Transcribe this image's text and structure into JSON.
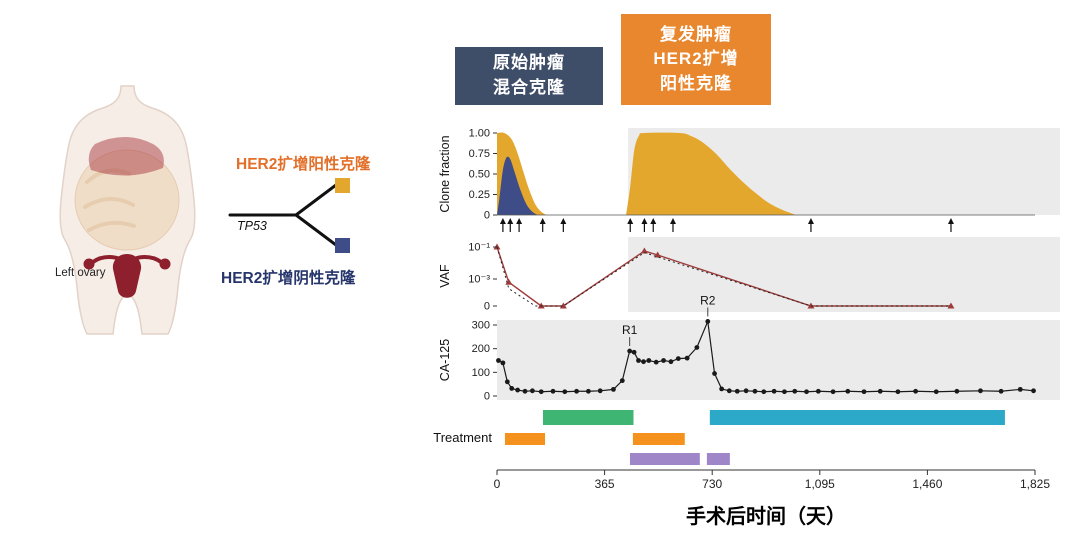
{
  "colors": {
    "yellow": "#E3A72E",
    "navy": "#3E4C87",
    "header_navy_bg": "#3F4E68",
    "header_orange_bg": "#E8872E",
    "tree_positive_text": "#E2702A",
    "tree_negative_text": "#26356B",
    "green": "#3FB573",
    "teal": "#2CA8C9",
    "orange": "#F5921E",
    "purple": "#9F86C9",
    "vaf_solid": "#9E3B3B",
    "vaf_dotted": "#222222",
    "ca125": "#1A1A1A",
    "panel_gray": "#EBEBEB",
    "arrow": "#111111",
    "axis": "#333333"
  },
  "anatomy": {
    "label": "Left ovary"
  },
  "tree": {
    "gene": "TP53",
    "positive": "HER2扩增阳性克隆",
    "negative": "HER2扩增阴性克隆"
  },
  "headers": {
    "primary": [
      "原始肿瘤",
      "混合克隆"
    ],
    "recurrent": [
      "复发肿瘤",
      "HER2扩增",
      "阳性克隆"
    ]
  },
  "chart_data": {
    "type": "multi-panel timeline (area + line + scatter + bars)",
    "x": {
      "title": "手术后时间（天）",
      "ticks": [
        0,
        365,
        730,
        1095,
        1460,
        1825
      ],
      "tick_labels": [
        "0",
        "365",
        "730",
        "1,095",
        "1,460",
        "1,825"
      ],
      "domain": [
        0,
        1910
      ],
      "recurrence_shade_start_day": 445
    },
    "clone_fraction": {
      "ylabel": "Clone fraction",
      "type": "area",
      "ylim": [
        0,
        1
      ],
      "yticks": [
        {
          "v": 1.0,
          "label": "1.00"
        },
        {
          "v": 0.75,
          "label": "0.75"
        },
        {
          "v": 0.5,
          "label": "0.50"
        },
        {
          "v": 0.25,
          "label": "0.25"
        },
        {
          "v": 0,
          "label": "0"
        }
      ],
      "areas": [
        {
          "clone": "primary HER2-positive",
          "color": "yellow",
          "points": [
            [
              0,
              1
            ],
            [
              25,
              1
            ],
            [
              50,
              0.92
            ],
            [
              70,
              0.75
            ],
            [
              90,
              0.52
            ],
            [
              110,
              0.3
            ],
            [
              130,
              0.13
            ],
            [
              150,
              0.04
            ],
            [
              168,
              0
            ]
          ]
        },
        {
          "clone": "primary HER2-negative",
          "color": "navy",
          "points": [
            [
              0,
              0
            ],
            [
              8,
              0.2
            ],
            [
              20,
              0.55
            ],
            [
              32,
              0.7
            ],
            [
              45,
              0.68
            ],
            [
              60,
              0.52
            ],
            [
              80,
              0.3
            ],
            [
              100,
              0.13
            ],
            [
              120,
              0.04
            ],
            [
              138,
              0
            ]
          ]
        },
        {
          "clone": "recurrent HER2-positive",
          "color": "yellow",
          "points": [
            [
              438,
              0
            ],
            [
              452,
              0.35
            ],
            [
              466,
              0.8
            ],
            [
              482,
              0.97
            ],
            [
              500,
              1
            ],
            [
              620,
              1
            ],
            [
              660,
              0.96
            ],
            [
              700,
              0.88
            ],
            [
              745,
              0.74
            ],
            [
              790,
              0.56
            ],
            [
              835,
              0.4
            ],
            [
              880,
              0.26
            ],
            [
              925,
              0.14
            ],
            [
              970,
              0.06
            ],
            [
              1015,
              0
            ]
          ]
        }
      ],
      "sample_arrow_days": [
        20,
        45,
        75,
        155,
        225,
        452,
        500,
        530,
        597,
        1065,
        1540
      ]
    },
    "vaf": {
      "ylabel": "VAF",
      "type": "line-log",
      "yticks": [
        {
          "v": -1,
          "label": "10⁻¹"
        },
        {
          "v": -3,
          "label": "10⁻³"
        },
        {
          "v": "nd",
          "label": "0"
        }
      ],
      "series": [
        {
          "style": "solid",
          "points": [
            [
              0,
              -1
            ],
            [
              40,
              -3.2
            ],
            [
              150,
              "nd"
            ],
            [
              225,
              "nd"
            ],
            [
              500,
              -1.25
            ],
            [
              545,
              -1.5
            ],
            [
              1065,
              "nd"
            ],
            [
              1540,
              "nd"
            ]
          ]
        },
        {
          "style": "dotted",
          "points": [
            [
              0,
              -1
            ],
            [
              40,
              -3.6
            ],
            [
              130,
              "nd"
            ],
            [
              225,
              "nd"
            ],
            [
              500,
              -1.35
            ],
            [
              545,
              -1.62
            ],
            [
              1065,
              "nd"
            ],
            [
              1540,
              "nd"
            ]
          ]
        }
      ]
    },
    "ca125": {
      "ylabel": "CA-125",
      "type": "line+scatter",
      "ylim": [
        0,
        300
      ],
      "yticks": [
        {
          "v": 300,
          "label": "300"
        },
        {
          "v": 200,
          "label": "200"
        },
        {
          "v": 100,
          "label": "100"
        },
        {
          "v": 0,
          "label": "0"
        }
      ],
      "points": [
        [
          5,
          150
        ],
        [
          20,
          140
        ],
        [
          35,
          60
        ],
        [
          50,
          32
        ],
        [
          70,
          25
        ],
        [
          95,
          20
        ],
        [
          120,
          22
        ],
        [
          150,
          18
        ],
        [
          190,
          20
        ],
        [
          230,
          18
        ],
        [
          270,
          20
        ],
        [
          310,
          20
        ],
        [
          350,
          22
        ],
        [
          395,
          28
        ],
        [
          425,
          65
        ],
        [
          450,
          190
        ],
        [
          465,
          185
        ],
        [
          480,
          150
        ],
        [
          497,
          145
        ],
        [
          515,
          150
        ],
        [
          540,
          143
        ],
        [
          565,
          150
        ],
        [
          590,
          145
        ],
        [
          615,
          158
        ],
        [
          645,
          160
        ],
        [
          678,
          205
        ],
        [
          715,
          315
        ],
        [
          738,
          95
        ],
        [
          762,
          30
        ],
        [
          788,
          22
        ],
        [
          815,
          20
        ],
        [
          845,
          22
        ],
        [
          875,
          20
        ],
        [
          905,
          18
        ],
        [
          940,
          20
        ],
        [
          975,
          18
        ],
        [
          1010,
          20
        ],
        [
          1050,
          18
        ],
        [
          1090,
          20
        ],
        [
          1140,
          18
        ],
        [
          1190,
          20
        ],
        [
          1245,
          18
        ],
        [
          1300,
          20
        ],
        [
          1360,
          18
        ],
        [
          1420,
          20
        ],
        [
          1490,
          18
        ],
        [
          1560,
          20
        ],
        [
          1640,
          22
        ],
        [
          1710,
          20
        ],
        [
          1775,
          28
        ],
        [
          1820,
          22
        ]
      ],
      "annotations": [
        {
          "label": "R1",
          "day": 450,
          "value": 190
        },
        {
          "label": "R2",
          "day": 715,
          "value": 315
        }
      ]
    },
    "treatment": {
      "label": "Treatment",
      "type": "bars",
      "bars": [
        {
          "row": "top",
          "color": "green",
          "start": 156,
          "end": 463
        },
        {
          "row": "mid",
          "color": "orange",
          "start": 27,
          "end": 163
        },
        {
          "row": "mid",
          "color": "orange",
          "start": 461,
          "end": 637
        },
        {
          "row": "top",
          "color": "teal",
          "start": 722,
          "end": 1723
        },
        {
          "row": "bot",
          "color": "purple",
          "start": 451,
          "end": 688
        },
        {
          "row": "bot",
          "color": "purple",
          "start": 712,
          "end": 790
        }
      ]
    }
  }
}
